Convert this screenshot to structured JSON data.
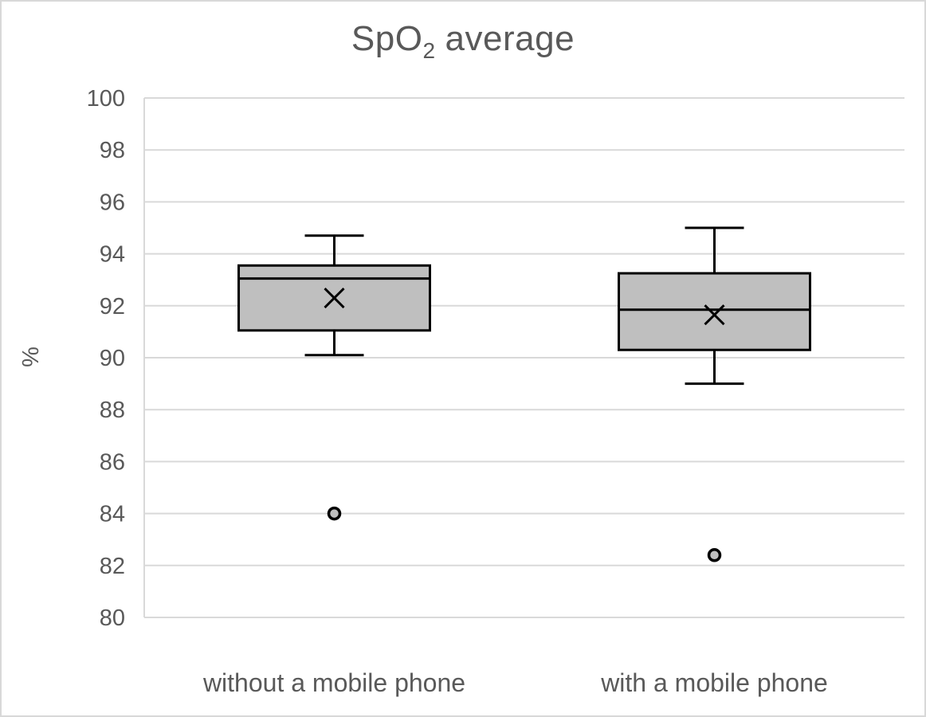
{
  "chart_data": {
    "type": "boxplot",
    "title": "SpO2 average",
    "title_parts": {
      "base": "SpO",
      "subscript": "2",
      "suffix": "average"
    },
    "ylabel": "%",
    "ylim": [
      80,
      100
    ],
    "yticks": [
      80,
      82,
      84,
      86,
      88,
      90,
      92,
      94,
      96,
      98,
      100
    ],
    "grid": true,
    "legend": "none",
    "categories": [
      "without a mobile phone",
      "with a mobile phone"
    ],
    "series": [
      {
        "name": "without a mobile phone",
        "whisker_low": 90.1,
        "q1": 91.05,
        "median": 93.05,
        "q3": 93.55,
        "whisker_high": 94.7,
        "mean": 92.3,
        "outliers": [
          84.0
        ]
      },
      {
        "name": "with a mobile phone",
        "whisker_low": 89.0,
        "q1": 90.3,
        "median": 91.85,
        "q3": 93.25,
        "whisker_high": 95.0,
        "mean": 91.65,
        "outliers": [
          82.4
        ]
      }
    ],
    "colors": {
      "box_fill": "#bfbfbf",
      "line": "#000000",
      "grid": "#d9d9d9",
      "text": "#595959",
      "background": "#ffffff"
    }
  }
}
